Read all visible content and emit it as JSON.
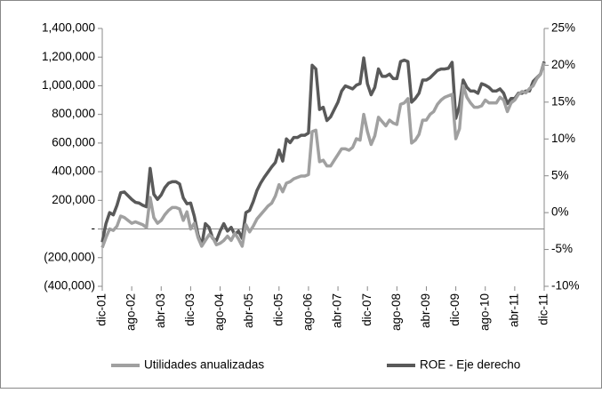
{
  "chart_data": {
    "type": "line",
    "categories": [
      "dic-01",
      null,
      null,
      null,
      null,
      null,
      null,
      null,
      "ago-02",
      null,
      null,
      null,
      null,
      null,
      null,
      null,
      "abr-03",
      null,
      null,
      null,
      null,
      null,
      null,
      null,
      "dic-03",
      null,
      null,
      null,
      null,
      null,
      null,
      null,
      "ago-04",
      null,
      null,
      null,
      null,
      null,
      null,
      null,
      "abr-05",
      null,
      null,
      null,
      null,
      null,
      null,
      null,
      "dic-05",
      null,
      null,
      null,
      null,
      null,
      null,
      null,
      "ago-06",
      null,
      null,
      null,
      null,
      null,
      null,
      null,
      "abr-07",
      null,
      null,
      null,
      null,
      null,
      null,
      null,
      "dic-07",
      null,
      null,
      null,
      null,
      null,
      null,
      null,
      "ago-08",
      null,
      null,
      null,
      null,
      null,
      null,
      null,
      "abr-09",
      null,
      null,
      null,
      null,
      null,
      null,
      null,
      "dic-09",
      null,
      null,
      null,
      null,
      null,
      null,
      null,
      "ago-10",
      null,
      null,
      null,
      null,
      null,
      null,
      null,
      "abr-11",
      null,
      null,
      null,
      null,
      null,
      null,
      null,
      "dic-11"
    ],
    "series": [
      {
        "name": "Utilidades anualizadas",
        "color": "#a0a0a0",
        "values": [
          -130000,
          -60000,
          0,
          -10000,
          20000,
          90000,
          80000,
          60000,
          40000,
          50000,
          40000,
          30000,
          10000,
          220000,
          80000,
          40000,
          60000,
          100000,
          130000,
          150000,
          150000,
          140000,
          60000,
          120000,
          0,
          40000,
          -60000,
          -120000,
          -80000,
          -40000,
          -60000,
          -110000,
          -100000,
          -80000,
          -50000,
          -80000,
          -30000,
          -70000,
          -120000,
          30000,
          -20000,
          20000,
          70000,
          100000,
          130000,
          160000,
          180000,
          230000,
          310000,
          260000,
          320000,
          330000,
          350000,
          360000,
          370000,
          370000,
          380000,
          680000,
          690000,
          470000,
          480000,
          440000,
          440000,
          480000,
          520000,
          560000,
          560000,
          550000,
          570000,
          630000,
          620000,
          800000,
          680000,
          590000,
          650000,
          780000,
          750000,
          720000,
          760000,
          740000,
          730000,
          870000,
          880000,
          910000,
          600000,
          620000,
          660000,
          760000,
          760000,
          800000,
          820000,
          870000,
          900000,
          920000,
          930000,
          940000,
          630000,
          700000,
          1000000,
          920000,
          880000,
          850000,
          850000,
          860000,
          900000,
          880000,
          880000,
          880000,
          920000,
          900000,
          820000,
          880000,
          900000,
          940000,
          960000,
          950000,
          980000,
          1000000,
          1050000,
          1080000,
          1160000
        ]
      },
      {
        "name": "ROE - Eje derecho",
        "color": "#595959",
        "axis": "y2",
        "values": [
          -4,
          -1.5,
          0,
          -0.3,
          1,
          2.7,
          2.8,
          2.3,
          1.8,
          1.4,
          1.3,
          1.0,
          0.8,
          6,
          2.5,
          1.8,
          2.4,
          3.4,
          4.0,
          4.2,
          4.2,
          3.9,
          2.0,
          1.2,
          1.3,
          -0.5,
          -3,
          -4.5,
          -1.5,
          -2,
          -3.5,
          -3.8,
          -2.5,
          -1.5,
          -2.5,
          -2,
          -3.0,
          -2.5,
          -3.5,
          0,
          0.3,
          1.5,
          3,
          4,
          4.8,
          5.5,
          6.2,
          6.8,
          8.5,
          7.0,
          10.0,
          9.5,
          10.2,
          10.2,
          10.5,
          10.5,
          10.8,
          20,
          19.5,
          14,
          14.3,
          12.5,
          13,
          14,
          15,
          16.5,
          17.2,
          17,
          16.8,
          17.3,
          17.5,
          21,
          17.5,
          16,
          17,
          19.5,
          18.5,
          18.5,
          18.8,
          18.2,
          18.2,
          20.5,
          20.7,
          20.5,
          15,
          15.5,
          16.2,
          18,
          18,
          18.3,
          18.8,
          19.3,
          19.5,
          19.5,
          19.6,
          20.4,
          12.8,
          14.5,
          18,
          17,
          16.5,
          16.5,
          16.2,
          17.5,
          17.3,
          17,
          16.5,
          16.5,
          16.8,
          16.2,
          14.8,
          15.5,
          15.5,
          16.2,
          16.2,
          16.5,
          16.5,
          17.8,
          18.3,
          18.8,
          20.5
        ]
      }
    ],
    "ylim": [
      -400000,
      1400000
    ],
    "yticks": [
      {
        "value": -400000,
        "label": "(400,000)"
      },
      {
        "value": -200000,
        "label": "(200,000)"
      },
      {
        "value": 0,
        "label": "-"
      },
      {
        "value": 200000,
        "label": "200,000"
      },
      {
        "value": 400000,
        "label": "400,000"
      },
      {
        "value": 600000,
        "label": "600,000"
      },
      {
        "value": 800000,
        "label": "800,000"
      },
      {
        "value": 1000000,
        "label": "1,000,000"
      },
      {
        "value": 1200000,
        "label": "1,200,000"
      },
      {
        "value": 1400000,
        "label": "1,400,000"
      }
    ],
    "y2lim": [
      -10,
      25
    ],
    "y2ticks": [
      {
        "value": -10,
        "label": "-10%"
      },
      {
        "value": -5,
        "label": "-5%"
      },
      {
        "value": 0,
        "label": "0%"
      },
      {
        "value": 5,
        "label": "5%"
      },
      {
        "value": 10,
        "label": "10%"
      },
      {
        "value": 15,
        "label": "15%"
      },
      {
        "value": 20,
        "label": "20%"
      },
      {
        "value": 25,
        "label": "25%"
      }
    ],
    "grid": false,
    "legend": "bottom"
  }
}
